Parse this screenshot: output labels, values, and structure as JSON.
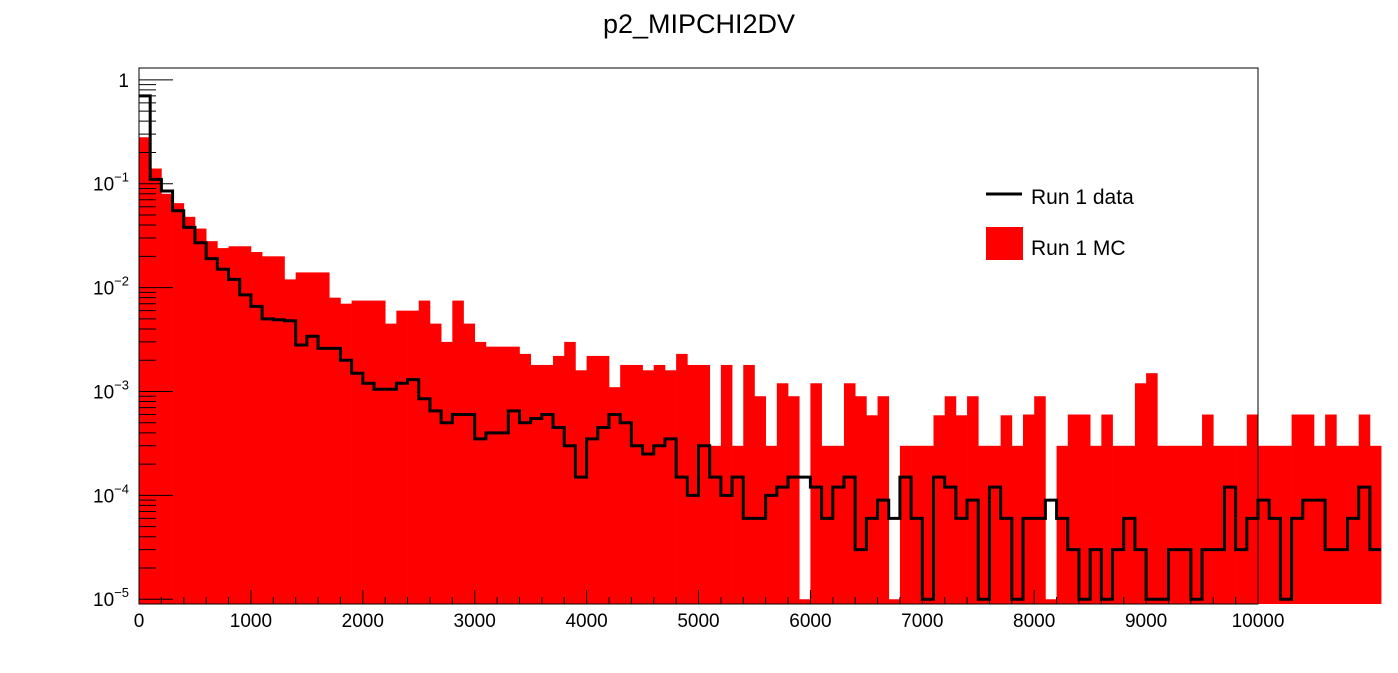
{
  "chart_data": {
    "type": "bar",
    "title": "p2_MIPCHI2DV",
    "xlabel": "",
    "ylabel": "",
    "xlim": [
      0,
      10000
    ],
    "ylim": [
      9e-06,
      1.3
    ],
    "yscale": "log",
    "grid": false,
    "legend_position": "top-right",
    "x_ticks": [
      {
        "value": 0,
        "label": "0"
      },
      {
        "value": 1000,
        "label": "1000"
      },
      {
        "value": 2000,
        "label": "2000"
      },
      {
        "value": 3000,
        "label": "3000"
      },
      {
        "value": 4000,
        "label": "4000"
      },
      {
        "value": 5000,
        "label": "5000"
      },
      {
        "value": 6000,
        "label": "6000"
      },
      {
        "value": 7000,
        "label": "7000"
      },
      {
        "value": 8000,
        "label": "8000"
      },
      {
        "value": 9000,
        "label": "9000"
      },
      {
        "value": 10000,
        "label": "10000"
      }
    ],
    "y_ticks": [
      {
        "value": 1,
        "mantissa": "1",
        "exponent": ""
      },
      {
        "value": 0.1,
        "mantissa": "10",
        "exponent": "−1"
      },
      {
        "value": 0.01,
        "mantissa": "10",
        "exponent": "−2"
      },
      {
        "value": 0.001,
        "mantissa": "10",
        "exponent": "−3"
      },
      {
        "value": 0.0001,
        "mantissa": "10",
        "exponent": "−4"
      },
      {
        "value": 1e-05,
        "mantissa": "10",
        "exponent": "−5"
      }
    ],
    "bin_width": 100,
    "series": [
      {
        "name": "Run 1 MC",
        "style": "filled",
        "color": "#ff0000",
        "values": [
          0.28,
          0.14,
          0.08,
          0.065,
          0.048,
          0.037,
          0.028,
          0.024,
          0.025,
          0.025,
          0.022,
          0.02,
          0.02,
          0.012,
          0.014,
          0.014,
          0.014,
          0.008,
          0.007,
          0.0075,
          0.0075,
          0.0075,
          0.0045,
          0.006,
          0.006,
          0.0075,
          0.0045,
          0.003,
          0.0075,
          0.0045,
          0.003,
          0.0027,
          0.0027,
          0.0027,
          0.0023,
          0.0018,
          0.0018,
          0.0022,
          0.003,
          0.0016,
          0.0022,
          0.0022,
          0.0011,
          0.0018,
          0.0018,
          0.0016,
          0.0018,
          0.0016,
          0.0023,
          0.0018,
          0.0018,
          0.0003,
          0.0018,
          0.0003,
          0.0018,
          0.0009,
          0.0003,
          0.0012,
          0.0009,
          1e-05,
          0.0012,
          0.0003,
          0.0003,
          0.0012,
          0.0009,
          0.00059,
          0.0009,
          1e-05,
          0.0003,
          0.0003,
          0.0003,
          0.00059,
          0.0009,
          0.00059,
          0.0009,
          0.0003,
          0.0003,
          0.00059,
          0.0003,
          0.0006,
          0.0009,
          1e-05,
          0.0003,
          0.0006,
          0.0006,
          0.0003,
          0.0006,
          0.0003,
          0.0003,
          0.0012,
          0.0015,
          0.0003,
          0.0003,
          0.0003,
          0.0003,
          0.0006,
          0.0003,
          0.0003,
          0.0003,
          0.0006,
          0.0003,
          0.0003,
          0.0003,
          0.0006,
          0.0006,
          0.0003,
          0.0006,
          0.0003,
          0.0003,
          0.0006,
          0.0003
        ]
      },
      {
        "name": "Run 1 data",
        "style": "step",
        "color": "#000000",
        "values": [
          0.7,
          0.11,
          0.085,
          0.055,
          0.038,
          0.027,
          0.019,
          0.015,
          0.012,
          0.0085,
          0.0066,
          0.005,
          0.0049,
          0.0048,
          0.0028,
          0.0034,
          0.0026,
          0.0026,
          0.002,
          0.0015,
          0.0012,
          0.00105,
          0.00105,
          0.0012,
          0.0013,
          0.00085,
          0.00065,
          0.0005,
          0.0006,
          0.0006,
          0.00035,
          0.0004,
          0.0004,
          0.00065,
          0.0005,
          0.00055,
          0.0006,
          0.00045,
          0.0003,
          0.00015,
          0.00035,
          0.00045,
          0.0006,
          0.0005,
          0.0003,
          0.00025,
          0.0003,
          0.00035,
          0.00015,
          0.0001,
          0.0003,
          0.00015,
          0.0001,
          0.00015,
          6e-05,
          6e-05,
          0.0001,
          0.00012,
          0.00015,
          0.00015,
          0.00012,
          6e-05,
          0.00012,
          0.00015,
          3e-05,
          6e-05,
          9e-05,
          6e-05,
          0.00015,
          6e-05,
          1e-05,
          0.00015,
          0.00012,
          6e-05,
          9e-05,
          1e-05,
          0.00012,
          6e-05,
          1e-05,
          6e-05,
          6e-05,
          9e-05,
          6e-05,
          3e-05,
          1e-05,
          3e-05,
          1e-05,
          3e-05,
          6e-05,
          3e-05,
          1e-05,
          1e-05,
          3e-05,
          3e-05,
          1e-05,
          3e-05,
          3e-05,
          0.00012,
          3e-05,
          6e-05,
          9e-05,
          6e-05,
          1e-05,
          6e-05,
          9e-05,
          9e-05,
          3e-05,
          3e-05,
          6e-05,
          0.00012,
          3e-05
        ]
      }
    ]
  }
}
